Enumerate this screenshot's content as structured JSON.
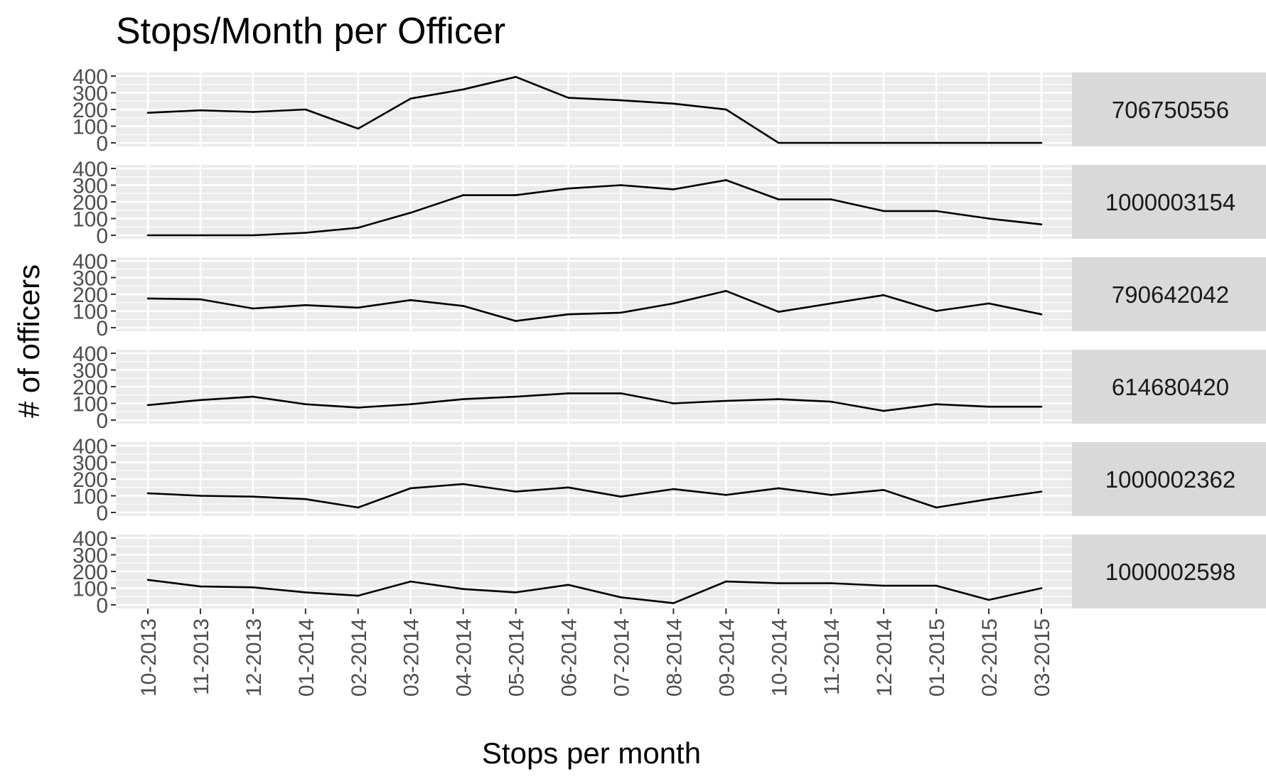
{
  "chart_data": {
    "type": "line",
    "title": "Stops/Month per Officer",
    "xlabel": "Stops per month",
    "ylabel": "# of officers",
    "x": [
      "10-2013",
      "11-2013",
      "12-2013",
      "01-2014",
      "02-2014",
      "03-2014",
      "04-2014",
      "05-2014",
      "06-2014",
      "07-2014",
      "08-2014",
      "09-2014",
      "10-2014",
      "11-2014",
      "12-2014",
      "01-2015",
      "02-2015",
      "03-2015"
    ],
    "yticks": [
      "0",
      "100",
      "200",
      "300",
      "400"
    ],
    "ylim": [
      0,
      400
    ],
    "grid": true,
    "facet": "rows",
    "panel_background": "#ebebeb",
    "strip_background": "#d9d9d9",
    "line_color": "#000000",
    "panels": [
      {
        "label": "706750556",
        "values": [
          180,
          195,
          185,
          200,
          85,
          265,
          320,
          395,
          270,
          255,
          235,
          200,
          0,
          0,
          0,
          0,
          0,
          0
        ]
      },
      {
        "label": "1000003154",
        "values": [
          0,
          0,
          0,
          15,
          45,
          135,
          240,
          240,
          280,
          300,
          275,
          330,
          215,
          215,
          145,
          145,
          100,
          65
        ]
      },
      {
        "label": "790642042",
        "values": [
          175,
          170,
          115,
          135,
          120,
          165,
          130,
          40,
          80,
          90,
          145,
          220,
          95,
          145,
          195,
          100,
          145,
          80
        ]
      },
      {
        "label": "614680420",
        "values": [
          90,
          120,
          140,
          95,
          75,
          95,
          125,
          140,
          160,
          160,
          100,
          115,
          125,
          110,
          55,
          95,
          80,
          80
        ]
      },
      {
        "label": "1000002362",
        "values": [
          115,
          100,
          95,
          80,
          30,
          145,
          170,
          125,
          150,
          95,
          140,
          105,
          145,
          105,
          135,
          30,
          80,
          125
        ]
      },
      {
        "label": "1000002598",
        "values": [
          150,
          110,
          105,
          75,
          55,
          140,
          95,
          75,
          120,
          45,
          10,
          140,
          130,
          130,
          115,
          115,
          30,
          100
        ]
      }
    ]
  }
}
